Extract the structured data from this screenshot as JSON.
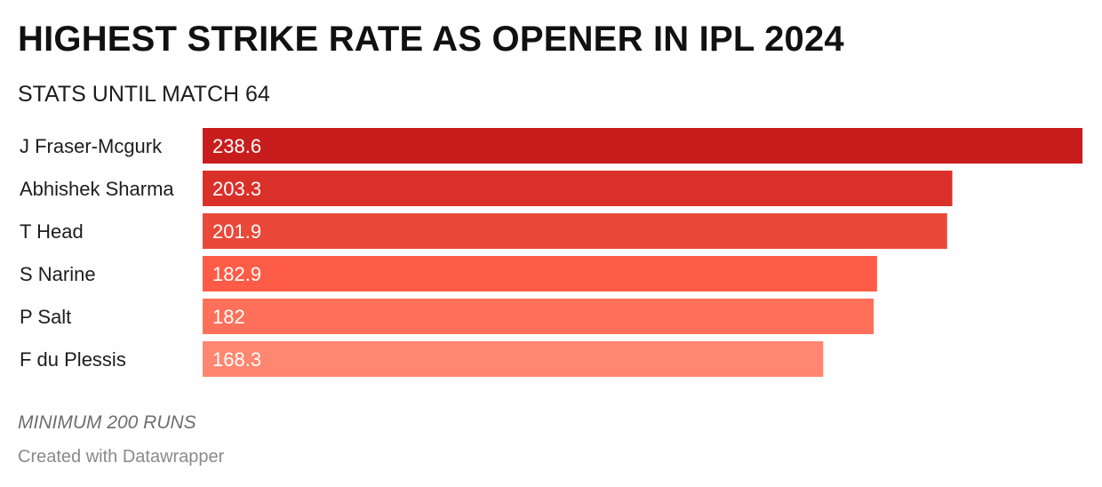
{
  "chart_data": {
    "type": "bar",
    "orientation": "horizontal",
    "title": "HIGHEST STRIKE RATE AS OPENER IN IPL 2024",
    "subtitle": "STATS UNTIL MATCH 64",
    "categories": [
      "J Fraser-Mcgurk",
      "Abhishek Sharma",
      "T Head",
      "S Narine",
      "P Salt",
      "F du Plessis"
    ],
    "values": [
      238.6,
      203.3,
      201.9,
      182.9,
      182,
      168.3
    ],
    "value_labels": [
      "238.6",
      "203.3",
      "201.9",
      "182.9",
      "182",
      "168.3"
    ],
    "colors": [
      "#c71d1d",
      "#d9302a",
      "#ea4838",
      "#ff5c47",
      "#ff705a",
      "#ff8670"
    ],
    "xlim": [
      0,
      238.6
    ],
    "grid": false,
    "notes": "MINIMUM 200 RUNS",
    "credit": "Created with Datawrapper"
  }
}
